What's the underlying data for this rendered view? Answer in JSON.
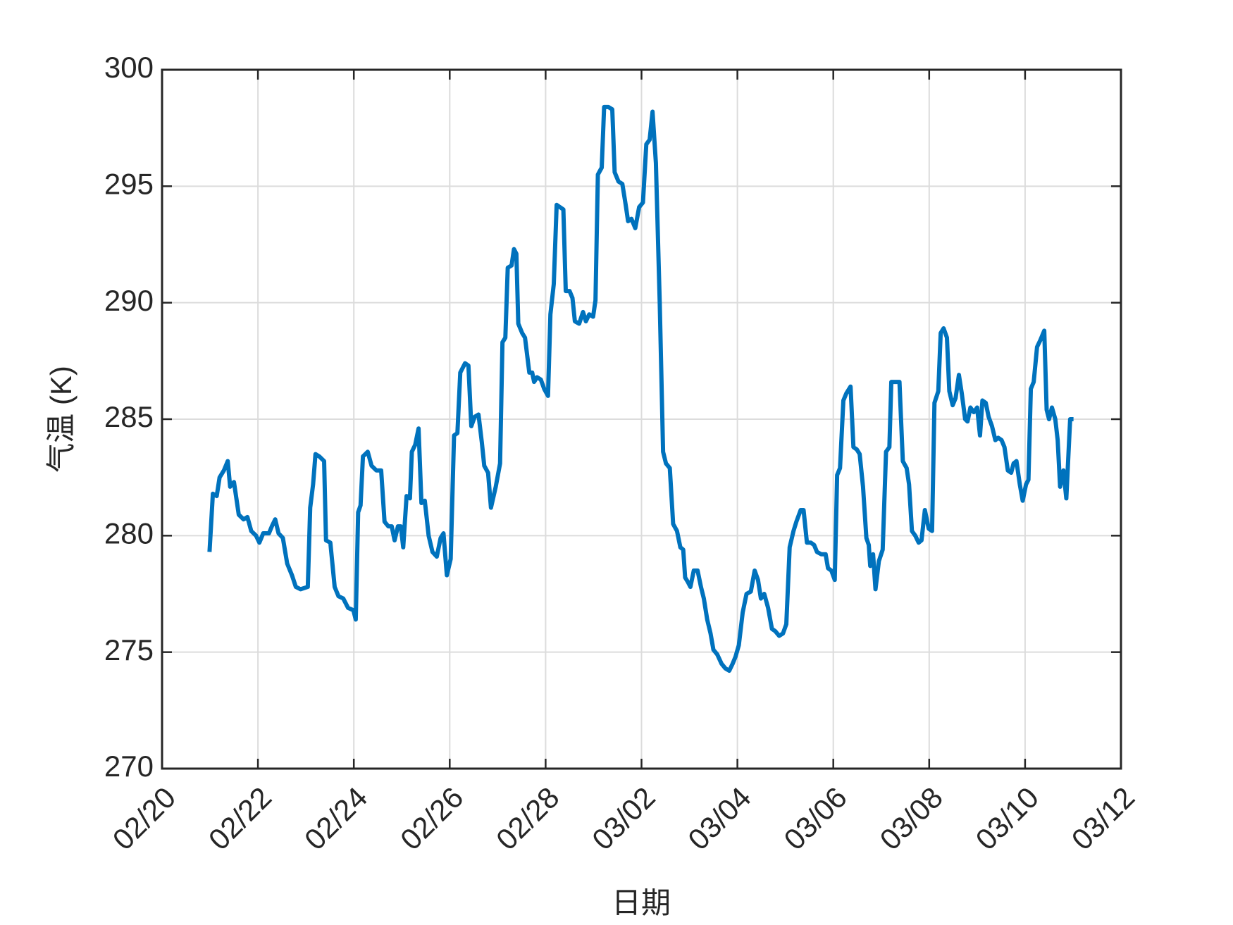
{
  "chart_data": {
    "type": "line",
    "xlabel": "日期",
    "ylabel": "气温 (K)",
    "xlim": [
      0,
      20
    ],
    "xticks": [
      {
        "value": 0,
        "label": "02/20"
      },
      {
        "value": 2,
        "label": "02/22"
      },
      {
        "value": 4,
        "label": "02/24"
      },
      {
        "value": 6,
        "label": "02/26"
      },
      {
        "value": 8,
        "label": "02/28"
      },
      {
        "value": 10,
        "label": "03/02"
      },
      {
        "value": 12,
        "label": "03/04"
      },
      {
        "value": 14,
        "label": "03/06"
      },
      {
        "value": 16,
        "label": "03/08"
      },
      {
        "value": 18,
        "label": "03/10"
      },
      {
        "value": 20,
        "label": "03/12"
      }
    ],
    "ylim": [
      270,
      300
    ],
    "yticks": [
      270,
      275,
      280,
      285,
      290,
      295,
      300
    ],
    "grid": true,
    "x": [
      0.99,
      1.06,
      1.14,
      1.2,
      1.29,
      1.37,
      1.42,
      1.5,
      1.6,
      1.7,
      1.78,
      1.86,
      1.96,
      2.03,
      2.11,
      2.23,
      2.29,
      2.36,
      2.43,
      2.52,
      2.61,
      2.71,
      2.79,
      2.89,
      3.04,
      3.09,
      3.15,
      3.2,
      3.28,
      3.38,
      3.42,
      3.51,
      3.6,
      3.68,
      3.78,
      3.88,
      3.99,
      4.04,
      4.09,
      4.14,
      4.19,
      4.29,
      4.37,
      4.47,
      4.57,
      4.64,
      4.72,
      4.79,
      4.85,
      4.92,
      4.98,
      5.03,
      5.1,
      5.17,
      5.21,
      5.28,
      5.35,
      5.41,
      5.48,
      5.56,
      5.64,
      5.73,
      5.81,
      5.87,
      5.94,
      6.02,
      6.09,
      6.16,
      6.22,
      6.32,
      6.39,
      6.45,
      6.52,
      6.6,
      6.67,
      6.72,
      6.8,
      6.86,
      6.96,
      7.05,
      7.1,
      7.16,
      7.21,
      7.29,
      7.34,
      7.39,
      7.43,
      7.51,
      7.57,
      7.66,
      7.72,
      7.76,
      7.82,
      7.9,
      7.97,
      8.05,
      8.1,
      8.17,
      8.23,
      8.3,
      8.37,
      8.42,
      8.5,
      8.56,
      8.61,
      8.7,
      8.78,
      8.84,
      8.91,
      8.99,
      9.04,
      9.09,
      9.17,
      9.22,
      9.31,
      9.39,
      9.44,
      9.52,
      9.6,
      9.67,
      9.72,
      9.79,
      9.87,
      9.95,
      10.03,
      10.1,
      10.17,
      10.23,
      10.3,
      10.38,
      10.45,
      10.51,
      10.59,
      10.66,
      10.74,
      10.81,
      10.87,
      10.91,
      10.97,
      11.02,
      11.09,
      11.17,
      11.24,
      11.3,
      11.37,
      11.44,
      11.5,
      11.58,
      11.67,
      11.75,
      11.83,
      11.9,
      11.96,
      12.03,
      12.11,
      12.19,
      12.28,
      12.36,
      12.43,
      12.49,
      12.56,
      12.64,
      12.72,
      12.79,
      12.87,
      12.95,
      13.02,
      13.09,
      13.17,
      13.23,
      13.32,
      13.38,
      13.45,
      13.53,
      13.6,
      13.66,
      13.75,
      13.84,
      13.89,
      13.96,
      14.03,
      14.08,
      14.14,
      14.21,
      14.27,
      14.36,
      14.42,
      14.49,
      14.55,
      14.62,
      14.69,
      14.74,
      14.77,
      14.83,
      14.88,
      14.95,
      15.03,
      15.1,
      15.17,
      15.21,
      15.3,
      15.38,
      15.45,
      15.53,
      15.58,
      15.64,
      15.71,
      15.78,
      15.84,
      15.91,
      15.99,
      16.06,
      16.11,
      16.19,
      16.24,
      16.3,
      16.37,
      16.42,
      16.49,
      16.55,
      16.62,
      16.68,
      16.75,
      16.8,
      16.86,
      16.93,
      17.0,
      17.06,
      17.11,
      17.18,
      17.24,
      17.31,
      17.38,
      17.44,
      17.51,
      17.57,
      17.64,
      17.71,
      17.76,
      17.82,
      17.89,
      17.95,
      18.02,
      18.07,
      18.12,
      18.18,
      18.25,
      18.32,
      18.4,
      18.45,
      18.5,
      18.56,
      18.63,
      18.68,
      18.73,
      18.8,
      18.86,
      18.94,
      19.01
    ],
    "series": [
      {
        "color": "#0072bd",
        "values": [
          279.3,
          281.8,
          281.7,
          282.5,
          282.8,
          283.2,
          282.1,
          282.3,
          280.9,
          280.7,
          280.8,
          280.2,
          280.0,
          279.7,
          280.1,
          280.1,
          280.4,
          280.7,
          280.1,
          279.9,
          278.8,
          278.3,
          277.8,
          277.7,
          277.8,
          281.2,
          282.2,
          283.5,
          283.4,
          283.2,
          279.8,
          279.7,
          277.8,
          277.4,
          277.3,
          276.9,
          276.8,
          276.4,
          281.0,
          281.3,
          283.4,
          283.6,
          283.0,
          282.8,
          282.8,
          280.6,
          280.4,
          280.4,
          279.8,
          280.4,
          280.4,
          279.5,
          281.7,
          281.6,
          283.6,
          283.9,
          284.6,
          281.4,
          281.5,
          280.0,
          279.3,
          279.1,
          279.9,
          280.1,
          278.3,
          279.0,
          284.3,
          284.4,
          287.0,
          287.4,
          287.3,
          284.7,
          285.1,
          285.2,
          284.0,
          283.0,
          282.7,
          281.2,
          282.1,
          283.1,
          288.3,
          288.5,
          291.5,
          291.6,
          292.3,
          292.1,
          289.1,
          288.7,
          288.5,
          287.0,
          287.0,
          286.6,
          286.8,
          286.7,
          286.3,
          286.0,
          289.5,
          290.8,
          294.2,
          294.1,
          294.0,
          290.5,
          290.5,
          290.2,
          289.2,
          289.1,
          289.6,
          289.2,
          289.5,
          289.4,
          290.1,
          295.5,
          295.8,
          298.4,
          298.4,
          298.3,
          295.6,
          295.2,
          295.1,
          294.2,
          293.5,
          293.6,
          293.2,
          294.1,
          294.3,
          296.8,
          297.0,
          298.2,
          296.0,
          290.0,
          283.6,
          283.1,
          282.9,
          280.5,
          280.2,
          279.5,
          279.4,
          278.2,
          278.0,
          277.8,
          278.5,
          278.5,
          277.8,
          277.3,
          276.4,
          275.8,
          275.1,
          274.9,
          274.5,
          274.3,
          274.2,
          274.5,
          274.8,
          275.3,
          276.7,
          277.5,
          277.6,
          278.5,
          278.1,
          277.3,
          277.5,
          276.9,
          276.0,
          275.9,
          275.7,
          275.8,
          276.2,
          279.5,
          280.2,
          280.6,
          281.1,
          281.1,
          279.7,
          279.7,
          279.6,
          279.3,
          279.2,
          279.2,
          278.6,
          278.5,
          278.1,
          282.6,
          282.9,
          285.8,
          286.1,
          286.4,
          283.8,
          283.7,
          283.5,
          282.1,
          279.9,
          279.6,
          278.7,
          279.2,
          277.7,
          278.9,
          279.4,
          283.6,
          283.8,
          286.6,
          286.6,
          286.6,
          283.2,
          282.9,
          282.2,
          280.2,
          280.0,
          279.7,
          279.8,
          281.1,
          280.3,
          280.2,
          285.7,
          286.2,
          288.7,
          288.9,
          288.5,
          286.2,
          285.6,
          285.9,
          286.9,
          286.1,
          285.0,
          284.9,
          285.5,
          285.3,
          285.5,
          284.3,
          285.8,
          285.7,
          285.1,
          284.7,
          284.1,
          284.2,
          284.1,
          283.8,
          282.8,
          282.7,
          283.1,
          283.2,
          282.2,
          281.5,
          282.2,
          282.4,
          286.3,
          286.6,
          288.1,
          288.4,
          288.8,
          285.4,
          285.0,
          285.5,
          285.0,
          284.1,
          282.1,
          282.8,
          281.6,
          285.0,
          285.0
        ]
      }
    ]
  }
}
